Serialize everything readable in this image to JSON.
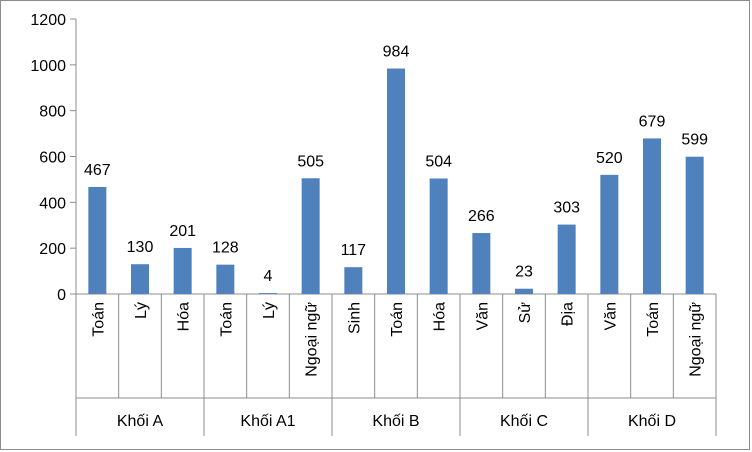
{
  "chart_data": {
    "type": "bar",
    "groups": [
      {
        "name": "Khối A",
        "categories": [
          "Toán",
          "Lý",
          "Hóa"
        ]
      },
      {
        "name": "Khối A1",
        "categories": [
          "Toán",
          "Lý",
          "Ngoại ngữ"
        ]
      },
      {
        "name": "Khối B",
        "categories": [
          "Sinh",
          "Toán",
          "Hóa"
        ]
      },
      {
        "name": "Khối C",
        "categories": [
          "Văn",
          "Sử",
          "Địa"
        ]
      },
      {
        "name": "Khối D",
        "categories": [
          "Văn",
          "Toán",
          "Ngoại ngữ"
        ]
      }
    ],
    "categories": [
      "Toán",
      "Lý",
      "Hóa",
      "Toán",
      "Lý",
      "Ngoại ngữ",
      "Sinh",
      "Toán",
      "Hóa",
      "Văn",
      "Sử",
      "Địa",
      "Văn",
      "Toán",
      "Ngoại ngữ"
    ],
    "values": [
      467,
      130,
      201,
      128,
      4,
      505,
      117,
      984,
      504,
      266,
      23,
      303,
      520,
      679,
      599
    ],
    "ylim": [
      0,
      1200
    ],
    "yticks": [
      0,
      200,
      400,
      600,
      800,
      1000,
      1200
    ],
    "grid": false,
    "legend": "none",
    "bar_color": "#4f81bd",
    "data_labels": true
  }
}
